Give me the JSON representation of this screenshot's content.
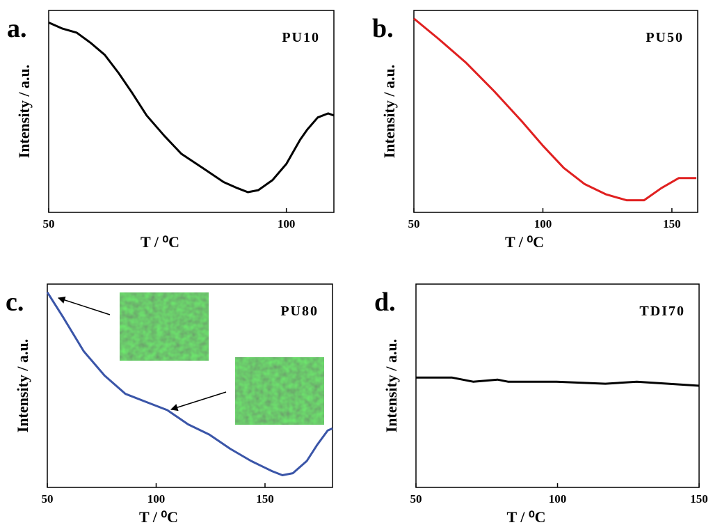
{
  "chart_data": [
    {
      "type": "line",
      "label": "a.",
      "title": "PU10",
      "x_label": "T / ⁰C",
      "y_label": "Intensity / a.u.",
      "xlim": [
        50,
        110
      ],
      "xticks": [
        50,
        100
      ],
      "ylim": [
        0,
        1
      ],
      "series": [
        {
          "name": "PU10",
          "color": "#000000",
          "x": [
            50,
            52.9,
            55.9,
            58.8,
            61.8,
            64.7,
            67.6,
            70.6,
            74.3,
            77.9,
            82.4,
            86.8,
            89.7,
            91.9,
            94.1,
            97.1,
            100,
            102.9,
            104.4,
            106.6,
            108.8,
            110
          ],
          "values": [
            0.94,
            0.91,
            0.89,
            0.84,
            0.78,
            0.69,
            0.59,
            0.48,
            0.38,
            0.29,
            0.22,
            0.15,
            0.12,
            0.1,
            0.11,
            0.16,
            0.24,
            0.36,
            0.41,
            0.47,
            0.49,
            0.48
          ]
        }
      ]
    },
    {
      "type": "line",
      "label": "b.",
      "title": "PU50",
      "x_label": "T / ⁰C",
      "y_label": "Intensity / a.u.",
      "xlim": [
        50,
        160
      ],
      "xticks": [
        50,
        100,
        150
      ],
      "ylim": [
        0,
        1
      ],
      "series": [
        {
          "name": "PU50",
          "color": "#e02020",
          "x": [
            50,
            59.5,
            70.3,
            81.1,
            91.9,
            100,
            108.1,
            116.2,
            124.3,
            132.4,
            139.2,
            145.9,
            152.7,
            159.5
          ],
          "values": [
            0.96,
            0.86,
            0.74,
            0.6,
            0.45,
            0.33,
            0.22,
            0.14,
            0.09,
            0.06,
            0.06,
            0.12,
            0.17,
            0.17
          ]
        }
      ]
    },
    {
      "type": "line",
      "label": "c.",
      "title": "PU80",
      "x_label": "T / ⁰C",
      "y_label": "Intensity / a.u.",
      "xlim": [
        50,
        181
      ],
      "xticks": [
        50,
        100,
        150
      ],
      "ylim": [
        0,
        1
      ],
      "series": [
        {
          "name": "PU80",
          "color": "#3a55a8",
          "x": [
            50,
            57.1,
            66.7,
            76.3,
            85.9,
            95.5,
            105.1,
            114.7,
            124.4,
            134,
            143.6,
            153.2,
            158,
            162.8,
            169.2,
            174,
            178.8,
            181
          ],
          "values": [
            0.96,
            0.84,
            0.67,
            0.55,
            0.46,
            0.42,
            0.38,
            0.31,
            0.26,
            0.19,
            0.13,
            0.08,
            0.06,
            0.07,
            0.13,
            0.21,
            0.28,
            0.29
          ]
        }
      ]
    },
    {
      "type": "line",
      "label": "d.",
      "title": "TDI70",
      "x_label": "T / ⁰C",
      "y_label": "Intensity / a.u.",
      "xlim": [
        50,
        150
      ],
      "xticks": [
        50,
        100,
        150
      ],
      "ylim": [
        0,
        1
      ],
      "series": [
        {
          "name": "TDI70",
          "color": "#000000",
          "x": [
            50,
            56.6,
            62.8,
            70.2,
            78.8,
            82.5,
            99.7,
            116.9,
            128,
            139.1,
            150
          ],
          "values": [
            0.54,
            0.54,
            0.54,
            0.52,
            0.53,
            0.52,
            0.52,
            0.51,
            0.52,
            0.51,
            0.5
          ]
        }
      ]
    }
  ]
}
